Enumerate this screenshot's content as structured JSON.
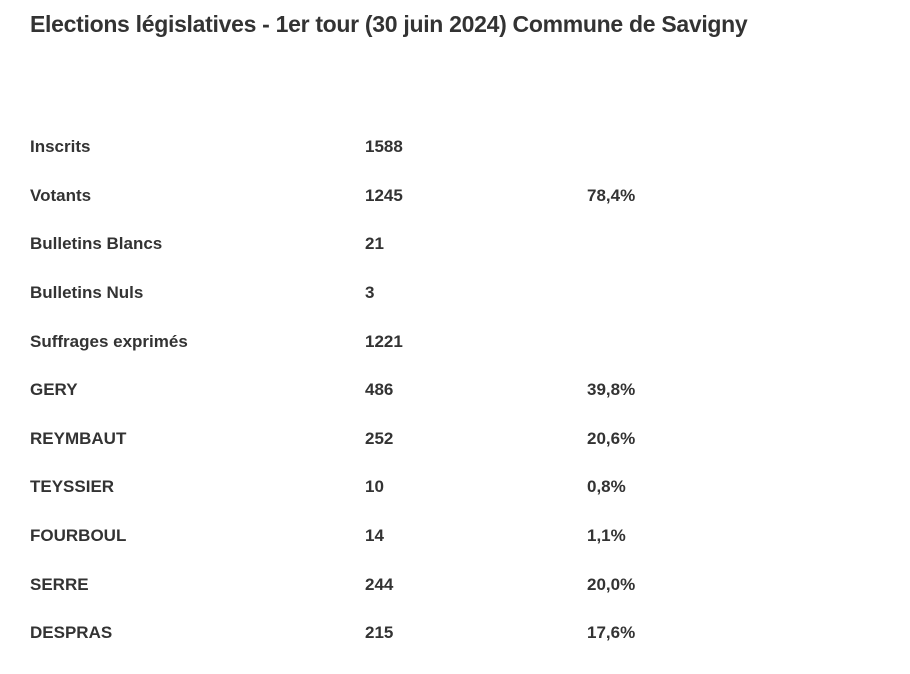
{
  "title": "Elections législatives - 1er tour (30 juin 2024) Commune de Savigny",
  "text_color": "#333333",
  "background_color": "#ffffff",
  "results_table": {
    "rows": [
      {
        "label": "Inscrits",
        "value": "1588",
        "pct": ""
      },
      {
        "label": "Votants",
        "value": "1245",
        "pct": "78,4%"
      },
      {
        "label": "Bulletins Blancs",
        "value": "21",
        "pct": ""
      },
      {
        "label": "Bulletins Nuls",
        "value": "3",
        "pct": ""
      },
      {
        "label": "Suffrages exprimés",
        "value": "1221",
        "pct": ""
      },
      {
        "label": "GERY",
        "value": "486",
        "pct": "39,8%"
      },
      {
        "label": "REYMBAUT",
        "value": "252",
        "pct": "20,6%"
      },
      {
        "label": "TEYSSIER",
        "value": "10",
        "pct": "0,8%"
      },
      {
        "label": "FOURBOUL",
        "value": "14",
        "pct": "1,1%"
      },
      {
        "label": "SERRE",
        "value": "244",
        "pct": "20,0%"
      },
      {
        "label": "DESPRAS",
        "value": "215",
        "pct": "17,6%"
      }
    ]
  }
}
